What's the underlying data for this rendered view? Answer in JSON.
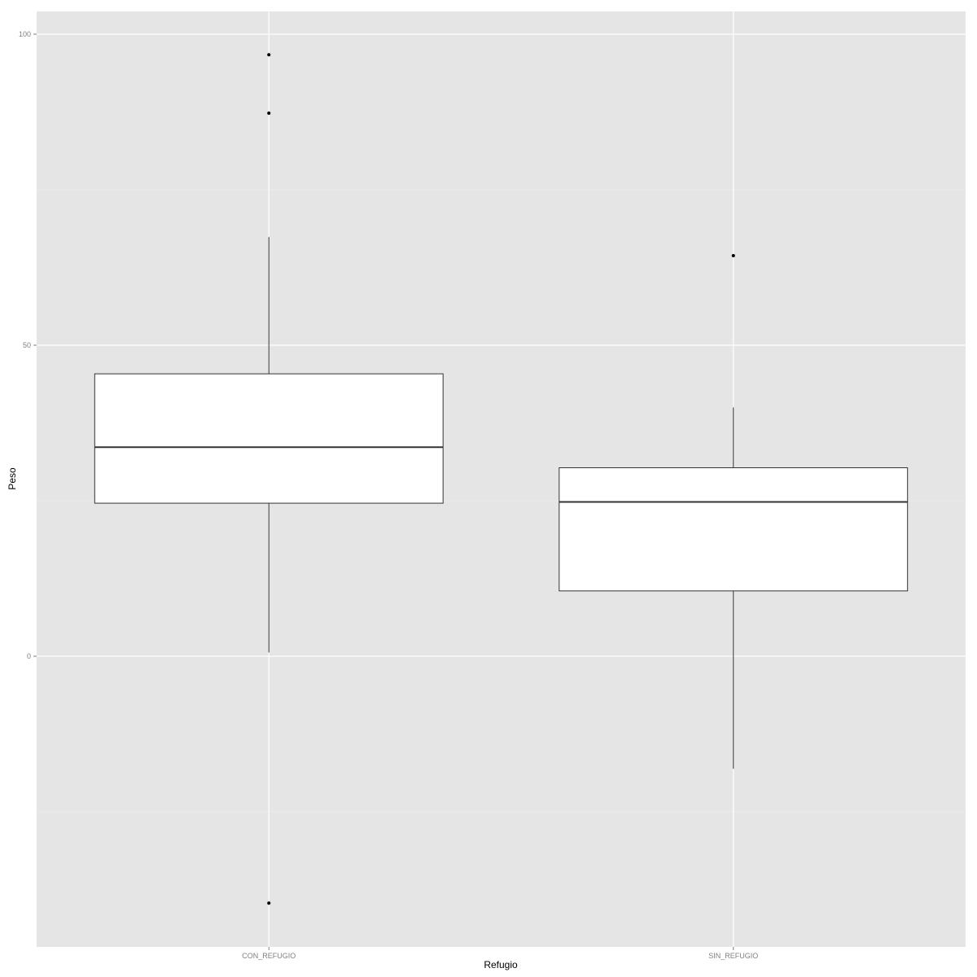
{
  "chart_data": {
    "type": "boxplot",
    "title": "",
    "xlabel": "Refugio",
    "ylabel": "Peso",
    "ylim": [
      -46.5,
      103.5
    ],
    "yticks": [
      0,
      50,
      100
    ],
    "ytick_labels": [
      "0",
      "50",
      "100"
    ],
    "grid": true,
    "legend": "none",
    "colors": {
      "panel_background": "#e5e5e5",
      "grid_major": "#ffffff",
      "grid_minor": "#f2f2f2",
      "box_fill": "#ffffff",
      "box_stroke": "#333333",
      "outlier": "#000000",
      "tick_label": "#7f7f7f",
      "axis_title": "#000000"
    },
    "categories": [
      "CON_REFUGIO",
      "SIN_REFUGIO"
    ],
    "boxes": [
      {
        "category": "CON_REFUGIO",
        "whisker_low": 0.6,
        "q1": 24.6,
        "median": 33.6,
        "q3": 45.4,
        "whisker_high": 67.4,
        "outliers": [
          96.7,
          87.3,
          -39.7
        ]
      },
      {
        "category": "SIN_REFUGIO",
        "whisker_low": -18.1,
        "q1": 10.5,
        "median": 24.8,
        "q3": 30.3,
        "whisker_high": 40.0,
        "outliers": [
          64.4
        ]
      }
    ]
  }
}
